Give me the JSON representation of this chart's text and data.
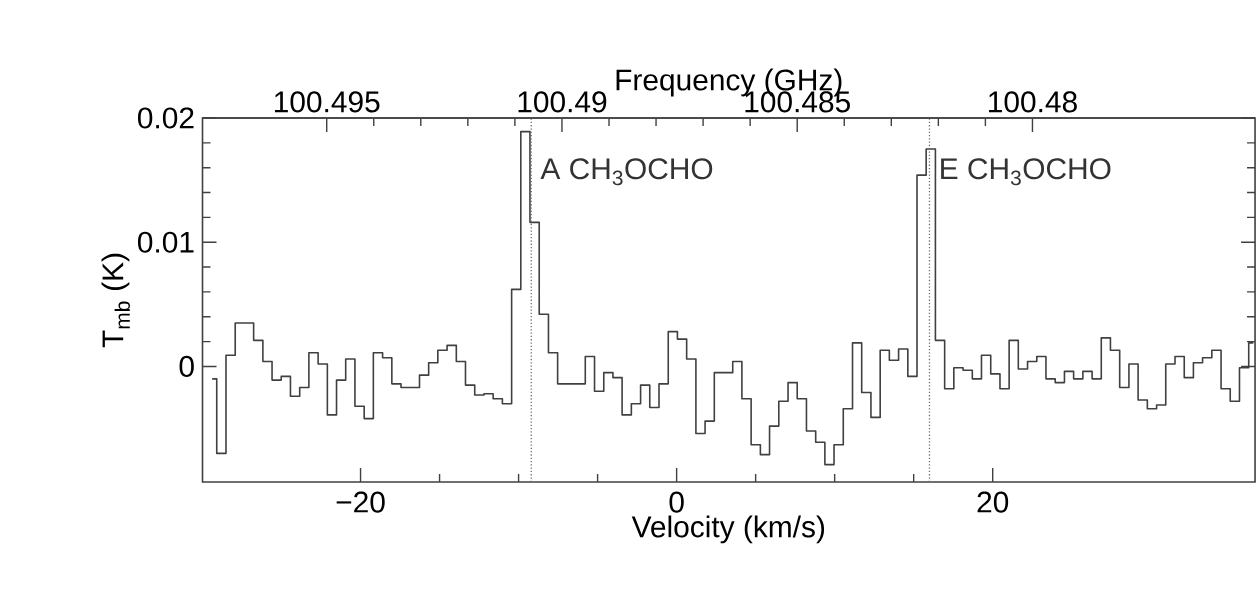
{
  "chart_data": {
    "type": "step",
    "xlabel": "Velocity (km/s)",
    "ylabel": "T$_{mb}$ (K)",
    "x2label": "Frequency (GHz)",
    "xlim": [
      -30,
      36.6
    ],
    "ylim": [
      -0.0093,
      0.02
    ],
    "x2lim": [
      100.49764,
      100.47527
    ],
    "xticks": [
      {
        "value": -20,
        "label": "−20"
      },
      0,
      20
    ],
    "yticks": [
      0,
      0.01,
      0.02
    ],
    "x2ticks": [
      100.495,
      100.49,
      100.485,
      100.48
    ],
    "x": [
      -29.39,
      -28.81,
      -28.22,
      -27.64,
      -27.06,
      -26.47,
      -25.89,
      -25.31,
      -24.73,
      -24.14,
      -23.56,
      -22.98,
      -22.39,
      -21.81,
      -21.23,
      -20.65,
      -20.06,
      -19.48,
      -18.9,
      -18.31,
      -17.73,
      -17.15,
      -16.56,
      -15.98,
      -15.4,
      -14.82,
      -14.23,
      -13.65,
      -13.07,
      -12.48,
      -11.9,
      -11.32,
      -10.73,
      -10.15,
      -9.57,
      -8.99,
      -8.4,
      -7.82,
      -7.24,
      -6.65,
      -6.07,
      -5.49,
      -4.9,
      -4.32,
      -3.74,
      -3.16,
      -2.57,
      -1.99,
      -1.41,
      -0.82,
      -0.24,
      0.34,
      0.93,
      1.51,
      2.09,
      2.68,
      3.26,
      3.84,
      4.42,
      5.01,
      5.59,
      6.17,
      6.76,
      7.34,
      7.92,
      8.51,
      9.09,
      9.67,
      10.25,
      10.84,
      11.42,
      12.0,
      12.59,
      13.17,
      13.75,
      14.34,
      14.92,
      15.5,
      16.08,
      16.67,
      17.25,
      17.83,
      18.42,
      19.0,
      19.58,
      20.17,
      20.75,
      21.33,
      21.91,
      22.5,
      23.08,
      23.66,
      24.25,
      24.83,
      25.41,
      26.0,
      26.58,
      27.16,
      27.74,
      28.33,
      28.91,
      29.49,
      30.08,
      30.66,
      31.24,
      31.83,
      32.41,
      32.99,
      33.57,
      34.16,
      34.74,
      35.32,
      35.91,
      36.49
    ],
    "series": [
      {
        "color": "#404040",
        "values": [
          -0.001,
          -0.007,
          0.0009,
          0.0035,
          0.0035,
          0.0021,
          0.0004,
          -0.0011,
          -0.0008,
          -0.0024,
          -0.0017,
          0.0011,
          0.0002,
          -0.0039,
          -0.0011,
          0.0006,
          -0.0032,
          -0.0042,
          0.0011,
          0.0007,
          -0.0014,
          -0.0017,
          -0.0017,
          -0.0007,
          0.0003,
          0.0013,
          0.0017,
          0.0004,
          -0.0015,
          -0.0023,
          -0.0022,
          -0.0026,
          -0.003,
          0.0062,
          0.0189,
          0.0116,
          0.0042,
          0.0011,
          -0.0014,
          -0.0014,
          -0.0014,
          0.0008,
          -0.002,
          -0.0005,
          -0.0009,
          -0.0039,
          -0.003,
          -0.0015,
          -0.0033,
          -0.0014,
          0.0028,
          0.0022,
          0.0006,
          -0.0054,
          -0.0044,
          -0.0005,
          -0.0005,
          0.0004,
          -0.0026,
          -0.0063,
          -0.0071,
          -0.0048,
          -0.0028,
          -0.0013,
          -0.0026,
          -0.0052,
          -0.0061,
          -0.0079,
          -0.0063,
          -0.0034,
          0.0019,
          -0.0021,
          -0.0041,
          0.0013,
          0.0005,
          0.0014,
          -0.0008,
          0.0154,
          0.0175,
          0.0021,
          -0.0018,
          -0.0001,
          -0.0003,
          -0.001,
          0.0009,
          -0.0006,
          -0.0018,
          0.0021,
          -0.0002,
          0.0004,
          0.0008,
          -0.001,
          -0.0013,
          -0.0004,
          -0.001,
          -0.0004,
          -0.001,
          0.0023,
          0.0013,
          -0.0017,
          0.0002,
          -0.0027,
          -0.0034,
          -0.0031,
          0.0002,
          0.0008,
          -0.0009,
          0.0003,
          0.0007,
          0.0013,
          -0.0018,
          -0.0028,
          -0.0001,
          0.0019
        ]
      }
    ],
    "ref_lines": [
      {
        "axis": "x",
        "value": -9.2,
        "label": "A CH$_{3}$OCHO",
        "color": "#707070",
        "line_style": "dotted"
      },
      {
        "axis": "x",
        "value": 16.0,
        "label": "E CH$_{3}$OCHO",
        "color": "#707070",
        "line_style": "dotted"
      }
    ]
  }
}
